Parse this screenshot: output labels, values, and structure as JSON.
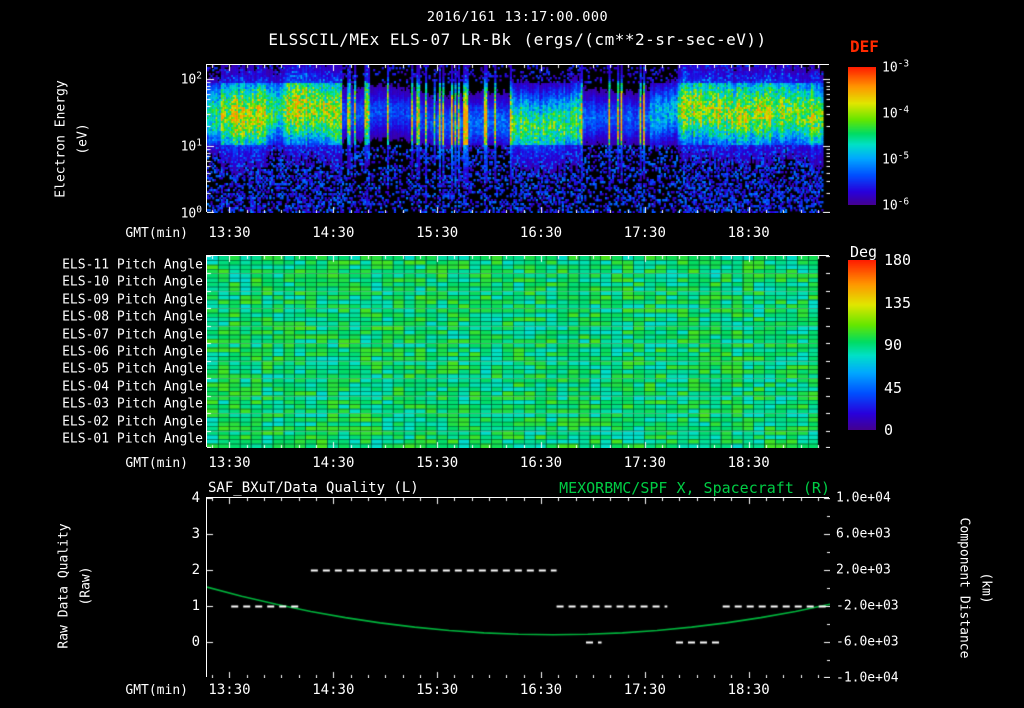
{
  "header": {
    "datetime": "2016/161 13:17:00.000",
    "instrument": "ELSSCIL/MEx ELS-07 LR-Bk",
    "units": "(ergs/(cm**2-sr-sec-eV))"
  },
  "colors": {
    "background": "#000000",
    "text": "#ffffff",
    "def_title": "#ff2a00",
    "green_accent": "#00cc44",
    "curve_green": "#00b33c"
  },
  "axes": {
    "gmt_label": "GMT(min)",
    "start_gmt": "13:17",
    "span_minutes": 360,
    "time_ticks": [
      {
        "label": "13:30",
        "t": 13
      },
      {
        "label": "14:30",
        "t": 73
      },
      {
        "label": "15:30",
        "t": 133
      },
      {
        "label": "16:30",
        "t": 193
      },
      {
        "label": "17:30",
        "t": 253
      },
      {
        "label": "18:30",
        "t": 313
      }
    ]
  },
  "energy_panel": {
    "ylabel": "Electron Energy",
    "ylabel_units": "(eV)",
    "ytick_base": "10",
    "ytick_exponents": [
      2,
      1,
      0
    ],
    "colorbar_title": "DEF",
    "colorbar_base": "10",
    "colorbar_exponents": [
      -3,
      -4,
      -5,
      -6
    ]
  },
  "pitch_panel": {
    "row_labels": [
      "ELS-11 Pitch Angle",
      "ELS-10 Pitch Angle",
      "ELS-09 Pitch Angle",
      "ELS-08 Pitch Angle",
      "ELS-07 Pitch Angle",
      "ELS-06 Pitch Angle",
      "ELS-05 Pitch Angle",
      "ELS-04 Pitch Angle",
      "ELS-03 Pitch Angle",
      "ELS-02 Pitch Angle",
      "ELS-01 Pitch Angle"
    ],
    "colorbar_title": "Deg",
    "colorbar_ticks": [
      {
        "label": "180",
        "v": 180
      },
      {
        "label": "135",
        "v": 135
      },
      {
        "label": "90",
        "v": 90
      },
      {
        "label": "45",
        "v": 45
      },
      {
        "label": "0",
        "v": 0
      }
    ]
  },
  "quality_panel": {
    "title_left": "SAF_BXuT/Data Quality (L)",
    "title_right": "MEXORBMC/SPF X, Spacecraft (R)",
    "ylabel_left": "Raw Data Quality",
    "ylabel_left_units": "(Raw)",
    "ylabel_right": "Component Distance",
    "ylabel_right_units": "(km)",
    "left_ticks": [
      {
        "label": "4",
        "v": 4
      },
      {
        "label": "3",
        "v": 3
      },
      {
        "label": "2",
        "v": 2
      },
      {
        "label": "1",
        "v": 1
      },
      {
        "label": "0",
        "v": 0
      }
    ],
    "right_ticks": [
      {
        "label": "1.0e+04",
        "v": 10000
      },
      {
        "label": "6.0e+03",
        "v": 6000
      },
      {
        "label": "2.0e+03",
        "v": 2000
      },
      {
        "label": "-2.0e+03",
        "v": -2000
      },
      {
        "label": "-6.0e+03",
        "v": -6000
      },
      {
        "label": "-1.0e+04",
        "v": -10000
      }
    ]
  },
  "chart_data": [
    {
      "type": "heatmap",
      "title": "ELSSCIL/MEx ELS-07 LR-Bk electron energy spectrogram",
      "xlabel": "GMT(min)",
      "ylabel": "Electron Energy (eV)",
      "x_range": [
        "13:17",
        "19:17"
      ],
      "y_scale": "log",
      "y_range_ev": [
        1,
        162
      ],
      "y_log_top": 2.21,
      "z_label": "DEF (ergs/(cm**2-sr-sec-eV))",
      "z_range": [
        "1e-6",
        "1e-3"
      ],
      "legend_position": "right",
      "colormap_positions": [
        0,
        0.1,
        0.22,
        0.34,
        0.44,
        0.52,
        0.62,
        0.74,
        0.86,
        1
      ],
      "colormap_stops": [
        "#46008c",
        "#2800dc",
        "#0050ff",
        "#00a8ff",
        "#00e0c8",
        "#00dc64",
        "#64e600",
        "#e1e600",
        "#ff9600",
        "#ff1e00"
      ],
      "band_center_ev": 28,
      "epochs": [
        {
          "t0": 0,
          "t1": 8,
          "intensity": 0.6,
          "striated": false
        },
        {
          "t0": 8,
          "t1": 34,
          "intensity": 0.88,
          "striated": false
        },
        {
          "t0": 34,
          "t1": 44,
          "intensity": 0.66,
          "striated": false
        },
        {
          "t0": 44,
          "t1": 78,
          "intensity": 0.86,
          "striated": false
        },
        {
          "t0": 78,
          "t1": 133,
          "intensity": 0.52,
          "striated": true
        },
        {
          "t0": 133,
          "t1": 176,
          "intensity": 0.62,
          "striated": true
        },
        {
          "t0": 176,
          "t1": 216,
          "intensity": 0.66,
          "striated": false
        },
        {
          "t0": 216,
          "t1": 256,
          "intensity": 0.58,
          "striated": true
        },
        {
          "t0": 256,
          "t1": 272,
          "intensity": 0.45,
          "striated": false
        },
        {
          "t0": 272,
          "t1": 356,
          "intensity": 0.82,
          "striated": false
        },
        {
          "t0": 356,
          "t1": 360,
          "intensity": 0,
          "striated": false
        }
      ]
    },
    {
      "type": "heatmap",
      "title": "ELS pitch angle coverage (anodes 01-11)",
      "rows": 11,
      "mean_pitch_deg": 92,
      "pitch_spread_deg": 15,
      "deg_range": [
        0,
        180
      ],
      "data_gap_minutes": [
        353,
        360
      ]
    },
    {
      "type": "line",
      "x_range": [
        "13:17",
        "19:17"
      ],
      "ylim_left": [
        -1,
        4
      ],
      "ylim_right": [
        -10000,
        10000
      ],
      "series": [
        {
          "name": "SAF_BXuT/Data Quality (L)",
          "axis": "left",
          "color": "#ffffff",
          "style": "dashed",
          "segments": [
            {
              "q": 1,
              "t0": 14,
              "t1": 55
            },
            {
              "q": 2,
              "t0": 60,
              "t1": 202
            },
            {
              "q": 1,
              "t0": 202,
              "t1": 266
            },
            {
              "q": 0,
              "t0": 219,
              "t1": 228
            },
            {
              "q": 0,
              "t0": 271,
              "t1": 297
            },
            {
              "q": 1,
              "t0": 298,
              "t1": 360
            }
          ]
        },
        {
          "name": "MEXORBMC/SPF X, Spacecraft (R)",
          "axis": "right",
          "color": "#00b33c",
          "style": "solid",
          "t": [
            0,
            20,
            40,
            60,
            80,
            100,
            120,
            140,
            160,
            180,
            200,
            220,
            240,
            260,
            280,
            300,
            320,
            340,
            360
          ],
          "km": [
            100,
            -907,
            -1808,
            -2603,
            -3292,
            -3875,
            -4352,
            -4723,
            -4988,
            -5147,
            -5200,
            -5147,
            -4988,
            -4723,
            -4352,
            -3875,
            -3292,
            -2603,
            -1808
          ]
        }
      ]
    }
  ]
}
